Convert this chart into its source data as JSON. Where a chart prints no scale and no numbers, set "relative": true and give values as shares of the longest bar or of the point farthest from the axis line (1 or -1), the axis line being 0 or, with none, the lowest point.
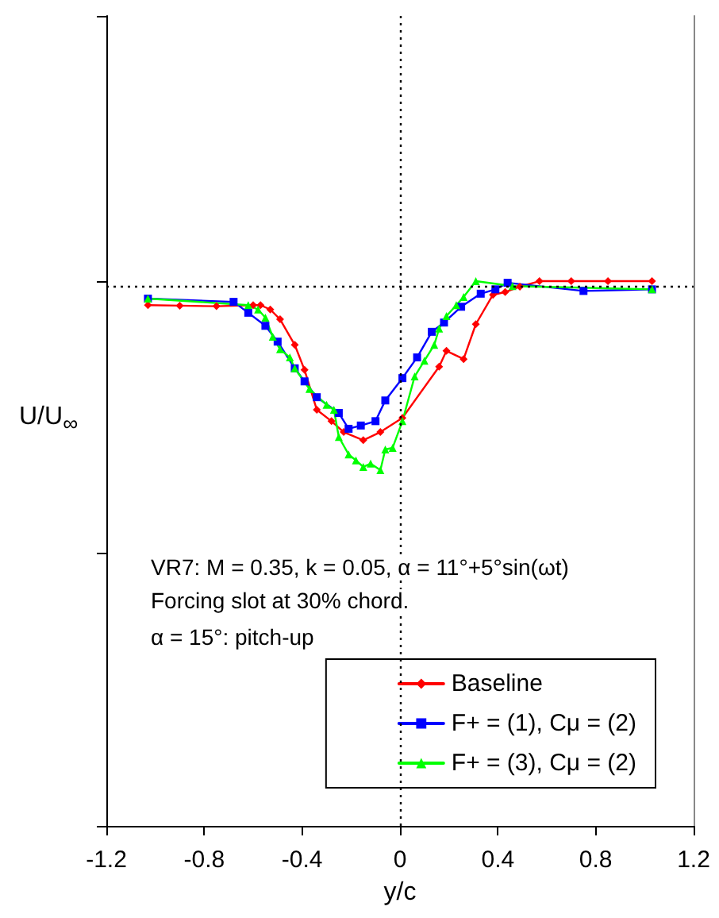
{
  "chart_data": {
    "type": "line",
    "relative": true,
    "xlabel": "y/c",
    "ylabel": "U/U$_{∞}$",
    "xlim": [
      -1.2,
      1.2
    ],
    "xticks": [
      -1.2,
      -0.8,
      -0.4,
      0,
      0.4,
      0.8,
      1.2
    ],
    "grid": false,
    "legend": "bottom right",
    "line_style": "solid",
    "annotations": [
      "VR7: M = 0.35, k = 0.05, α = 11°+5°sin(ωt)",
      "Forcing slot at 30% chord.",
      "α = 15°: pitch-up"
    ],
    "ref_lines": [
      {
        "axis": "y",
        "value": 0.991,
        "line_style": "dotted"
      },
      {
        "axis": "x",
        "value": 0,
        "line_style": "dotted"
      }
    ],
    "series": [
      {
        "name": "Baseline",
        "color": "#ff0000",
        "marker": "diamond",
        "x": [
          -1.03,
          -0.9,
          -0.75,
          -0.6,
          -0.57,
          -0.53,
          -0.49,
          -0.43,
          -0.39,
          -0.34,
          -0.28,
          -0.23,
          -0.15,
          -0.08,
          0.01,
          0.16,
          0.19,
          0.26,
          0.31,
          0.38,
          0.43,
          0.49,
          0.57,
          0.7,
          0.85,
          1.03
        ],
        "values": [
          0.956,
          0.955,
          0.954,
          0.956,
          0.956,
          0.948,
          0.93,
          0.883,
          0.837,
          0.764,
          0.743,
          0.723,
          0.708,
          0.723,
          0.749,
          0.843,
          0.872,
          0.857,
          0.921,
          0.975,
          0.98,
          0.99,
          1.0,
          1.0,
          1.0,
          1.0
        ]
      },
      {
        "name": "F+ = (1), Cμ = (2)",
        "color": "#0000ff",
        "marker": "square",
        "x": [
          -1.03,
          -0.68,
          -0.62,
          -0.55,
          -0.5,
          -0.43,
          -0.39,
          -0.34,
          -0.25,
          -0.21,
          -0.16,
          -0.1,
          -0.06,
          0.01,
          0.07,
          0.13,
          0.18,
          0.25,
          0.33,
          0.39,
          0.44,
          0.75,
          1.03
        ],
        "values": [
          0.968,
          0.962,
          0.942,
          0.918,
          0.889,
          0.84,
          0.816,
          0.787,
          0.758,
          0.729,
          0.735,
          0.743,
          0.781,
          0.822,
          0.86,
          0.907,
          0.924,
          0.953,
          0.977,
          0.985,
          0.997,
          0.982,
          0.985
        ]
      },
      {
        "name": "F+ = (3), Cμ = (2)",
        "color": "#00ff00",
        "marker": "triangle",
        "x": [
          -1.03,
          -0.62,
          -0.58,
          -0.55,
          -0.52,
          -0.49,
          -0.45,
          -0.43,
          -0.37,
          -0.3,
          -0.27,
          -0.25,
          -0.21,
          -0.18,
          -0.15,
          -0.12,
          -0.08,
          -0.06,
          -0.03,
          0.01,
          0.06,
          0.1,
          0.14,
          0.16,
          0.19,
          0.23,
          0.26,
          0.31,
          0.46,
          1.03
        ],
        "values": [
          0.968,
          0.956,
          0.948,
          0.933,
          0.898,
          0.875,
          0.86,
          0.84,
          0.802,
          0.773,
          0.764,
          0.714,
          0.682,
          0.671,
          0.659,
          0.665,
          0.653,
          0.691,
          0.694,
          0.743,
          0.825,
          0.854,
          0.883,
          0.913,
          0.936,
          0.956,
          0.971,
          1.0,
          0.991,
          0.985
        ]
      }
    ]
  }
}
